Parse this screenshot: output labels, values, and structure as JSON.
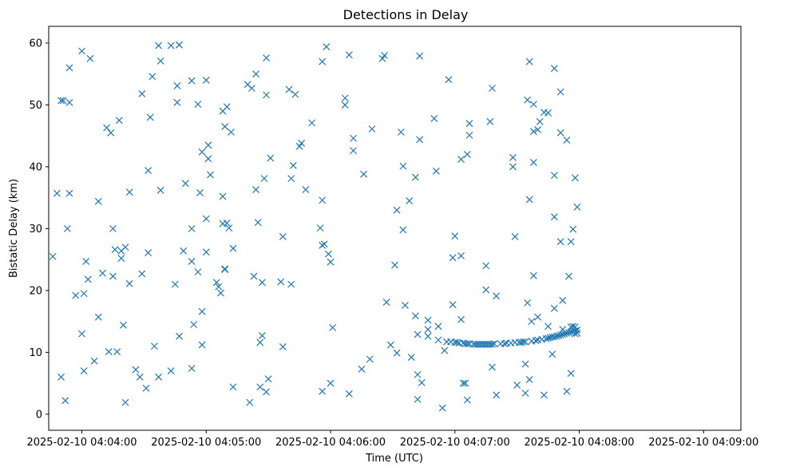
{
  "chart_data": {
    "type": "scatter",
    "title": "Detections in Delay",
    "xlabel": "Time (UTC)",
    "ylabel": "Bistatic Delay (km)",
    "x_unit": "seconds after 2025-02-10 04:04:00",
    "xlim": [
      -16,
      318
    ],
    "ylim": [
      -2.6,
      62.7
    ],
    "x_ticks": [
      {
        "value": 0,
        "label": "2025-02-10 04:04:00"
      },
      {
        "value": 60,
        "label": "2025-02-10 04:05:00"
      },
      {
        "value": 120,
        "label": "2025-02-10 04:06:00"
      },
      {
        "value": 180,
        "label": "2025-02-10 04:07:00"
      },
      {
        "value": 240,
        "label": "2025-02-10 04:08:00"
      },
      {
        "value": 300,
        "label": "2025-02-10 04:09:00"
      }
    ],
    "y_ticks": [
      {
        "value": 0,
        "label": "0"
      },
      {
        "value": 10,
        "label": "10"
      },
      {
        "value": 20,
        "label": "20"
      },
      {
        "value": 30,
        "label": "30"
      },
      {
        "value": 40,
        "label": "40"
      },
      {
        "value": 50,
        "label": "50"
      },
      {
        "value": 60,
        "label": "60"
      }
    ],
    "marker": "x",
    "color": "#1f77b4",
    "grid": false,
    "series": [
      {
        "name": "Detections",
        "points": [
          [
            -14,
            25.5
          ],
          [
            -12,
            35.7
          ],
          [
            -10,
            6.0
          ],
          [
            -10,
            50.7
          ],
          [
            -9,
            50.7
          ],
          [
            -8,
            2.2
          ],
          [
            -7,
            30.0
          ],
          [
            -6,
            56.0
          ],
          [
            -6,
            35.7
          ],
          [
            -6,
            50.4
          ],
          [
            -3,
            19.2
          ],
          [
            0,
            13.0
          ],
          [
            0,
            58.7
          ],
          [
            1,
            19.5
          ],
          [
            1,
            7.0
          ],
          [
            2,
            24.7
          ],
          [
            3,
            21.8
          ],
          [
            4,
            57.5
          ],
          [
            6,
            8.6
          ],
          [
            8,
            34.4
          ],
          [
            8,
            15.7
          ],
          [
            10,
            22.8
          ],
          [
            12,
            46.3
          ],
          [
            13,
            10.1
          ],
          [
            14,
            45.5
          ],
          [
            15,
            30.0
          ],
          [
            15,
            22.3
          ],
          [
            16,
            26.6
          ],
          [
            17,
            10.1
          ],
          [
            18,
            47.5
          ],
          [
            19,
            26.4
          ],
          [
            19,
            25.2
          ],
          [
            20,
            14.4
          ],
          [
            21,
            27.0
          ],
          [
            21,
            1.9
          ],
          [
            23,
            21.1
          ],
          [
            23,
            35.9
          ],
          [
            26,
            7.2
          ],
          [
            28,
            6.0
          ],
          [
            29,
            51.8
          ],
          [
            29,
            22.7
          ],
          [
            31,
            4.2
          ],
          [
            32,
            26.1
          ],
          [
            32,
            39.4
          ],
          [
            33,
            48.0
          ],
          [
            34,
            54.6
          ],
          [
            35,
            11.0
          ],
          [
            37,
            6.0
          ],
          [
            37,
            59.6
          ],
          [
            38,
            57.1
          ],
          [
            38,
            36.2
          ],
          [
            43,
            59.6
          ],
          [
            43,
            7.0
          ],
          [
            45,
            21.0
          ],
          [
            46,
            50.4
          ],
          [
            46,
            53.1
          ],
          [
            47,
            59.7
          ],
          [
            47,
            59.7
          ],
          [
            47,
            12.6
          ],
          [
            49,
            26.4
          ],
          [
            50,
            37.3
          ],
          [
            53,
            30.0
          ],
          [
            53,
            7.4
          ],
          [
            53,
            53.9
          ],
          [
            53,
            24.7
          ],
          [
            54,
            14.5
          ],
          [
            56,
            23.0
          ],
          [
            56,
            50.1
          ],
          [
            57,
            35.8
          ],
          [
            58,
            42.4
          ],
          [
            58,
            16.6
          ],
          [
            58,
            11.2
          ],
          [
            60,
            31.6
          ],
          [
            60,
            54.0
          ],
          [
            60,
            26.2
          ],
          [
            61,
            43.5
          ],
          [
            61,
            41.3
          ],
          [
            62,
            38.7
          ],
          [
            65,
            21.3
          ],
          [
            66,
            20.6
          ],
          [
            67,
            19.6
          ],
          [
            68,
            30.8
          ],
          [
            68,
            35.2
          ],
          [
            68,
            49.0
          ],
          [
            69,
            46.5
          ],
          [
            69,
            23.5
          ],
          [
            69,
            23.4
          ],
          [
            70,
            49.7
          ],
          [
            70,
            30.9
          ],
          [
            71,
            30.1
          ],
          [
            72,
            45.6
          ],
          [
            73,
            26.8
          ],
          [
            73,
            4.4
          ],
          [
            80,
            53.3
          ],
          [
            81,
            1.9
          ],
          [
            82,
            52.7
          ],
          [
            83,
            22.3
          ],
          [
            84,
            36.3
          ],
          [
            84,
            55.0
          ],
          [
            85,
            31.0
          ],
          [
            86,
            4.4
          ],
          [
            86,
            11.6
          ],
          [
            87,
            21.3
          ],
          [
            87,
            12.7
          ],
          [
            88,
            38.1
          ],
          [
            89,
            3.6
          ],
          [
            89,
            51.6
          ],
          [
            89,
            57.6
          ],
          [
            90,
            5.7
          ],
          [
            91,
            41.4
          ],
          [
            96,
            21.4
          ],
          [
            97,
            10.9
          ],
          [
            97,
            28.7
          ],
          [
            100,
            52.5
          ],
          [
            101,
            21.0
          ],
          [
            101,
            38.1
          ],
          [
            102,
            40.2
          ],
          [
            103,
            51.7
          ],
          [
            105,
            43.3
          ],
          [
            106,
            43.8
          ],
          [
            108,
            36.3
          ],
          [
            111,
            47.1
          ],
          [
            115,
            30.1
          ],
          [
            116,
            3.7
          ],
          [
            116,
            27.3
          ],
          [
            116,
            34.6
          ],
          [
            116,
            57.0
          ],
          [
            117,
            27.5
          ],
          [
            118,
            59.4
          ],
          [
            119,
            25.9
          ],
          [
            120,
            5.0
          ],
          [
            120,
            24.6
          ],
          [
            121,
            14.0
          ],
          [
            127,
            50.0
          ],
          [
            127,
            51.1
          ],
          [
            129,
            3.3
          ],
          [
            129,
            58.1
          ],
          [
            131,
            44.6
          ],
          [
            131,
            42.6
          ],
          [
            135,
            7.3
          ],
          [
            136,
            38.8
          ],
          [
            139,
            8.9
          ],
          [
            140,
            46.1
          ],
          [
            145,
            57.5
          ],
          [
            146,
            58.0
          ],
          [
            147,
            18.1
          ],
          [
            149,
            11.2
          ],
          [
            151,
            24.1
          ],
          [
            152,
            33.0
          ],
          [
            152,
            9.9
          ],
          [
            154,
            45.6
          ],
          [
            155,
            40.1
          ],
          [
            155,
            29.8
          ],
          [
            156,
            17.6
          ],
          [
            158,
            34.5
          ],
          [
            159,
            9.2
          ],
          [
            161,
            15.9
          ],
          [
            161,
            38.3
          ],
          [
            162,
            12.9
          ],
          [
            162,
            6.4
          ],
          [
            162,
            2.4
          ],
          [
            163,
            44.4
          ],
          [
            163,
            57.9
          ],
          [
            164,
            5.1
          ],
          [
            167,
            15.2
          ],
          [
            167,
            13.7
          ],
          [
            167,
            12.6
          ],
          [
            170,
            47.8
          ],
          [
            171,
            39.3
          ],
          [
            172,
            12.0
          ],
          [
            172,
            14.2
          ],
          [
            174,
            1.0
          ],
          [
            175,
            10.3
          ],
          [
            176,
            11.7
          ],
          [
            177,
            54.1
          ],
          [
            178,
            11.7
          ],
          [
            179,
            17.7
          ],
          [
            179,
            25.3
          ],
          [
            180,
            11.6
          ],
          [
            180,
            28.8
          ],
          [
            181,
            11.6
          ],
          [
            182,
            11.5
          ],
          [
            183,
            15.3
          ],
          [
            183,
            41.2
          ],
          [
            183,
            25.6
          ],
          [
            184,
            5.0
          ],
          [
            184,
            11.5
          ],
          [
            185,
            5.0
          ],
          [
            185,
            11.4
          ],
          [
            186,
            42.0
          ],
          [
            186,
            2.3
          ],
          [
            186,
            11.4
          ],
          [
            187,
            47.0
          ],
          [
            187,
            45.1
          ],
          [
            187,
            11.4
          ],
          [
            189,
            11.3
          ],
          [
            190,
            11.3
          ],
          [
            191,
            11.3
          ],
          [
            192,
            11.3
          ],
          [
            193,
            11.3
          ],
          [
            194,
            11.3
          ],
          [
            195,
            11.3
          ],
          [
            195,
            24.0
          ],
          [
            195,
            20.1
          ],
          [
            196,
            11.3
          ],
          [
            197,
            47.3
          ],
          [
            197,
            11.3
          ],
          [
            198,
            52.7
          ],
          [
            198,
            7.6
          ],
          [
            198,
            11.3
          ],
          [
            199,
            11.4
          ],
          [
            200,
            19.1
          ],
          [
            200,
            3.1
          ],
          [
            202,
            11.4
          ],
          [
            204,
            11.4
          ],
          [
            205,
            11.5
          ],
          [
            207,
            11.5
          ],
          [
            208,
            41.5
          ],
          [
            208,
            40.0
          ],
          [
            209,
            28.7
          ],
          [
            209,
            11.6
          ],
          [
            210,
            4.7
          ],
          [
            211,
            11.6
          ],
          [
            212,
            11.6
          ],
          [
            213,
            11.7
          ],
          [
            214,
            8.1
          ],
          [
            214,
            3.4
          ],
          [
            214,
            11.7
          ],
          [
            215,
            18.0
          ],
          [
            215,
            50.8
          ],
          [
            216,
            34.7
          ],
          [
            216,
            5.6
          ],
          [
            216,
            57.0
          ],
          [
            217,
            15.0
          ],
          [
            217,
            11.8
          ],
          [
            218,
            22.4
          ],
          [
            218,
            50.1
          ],
          [
            218,
            45.7
          ],
          [
            218,
            40.7
          ],
          [
            219,
            11.9
          ],
          [
            220,
            15.7
          ],
          [
            220,
            12.0
          ],
          [
            220,
            46.0
          ],
          [
            221,
            47.3
          ],
          [
            222,
            12.1
          ],
          [
            223,
            48.8
          ],
          [
            223,
            3.1
          ],
          [
            224,
            12.2
          ],
          [
            225,
            12.3
          ],
          [
            225,
            14.2
          ],
          [
            225,
            48.7
          ],
          [
            226,
            12.4
          ],
          [
            227,
            12.5
          ],
          [
            227,
            9.7
          ],
          [
            228,
            17.1
          ],
          [
            228,
            12.5
          ],
          [
            228,
            38.6
          ],
          [
            228,
            31.9
          ],
          [
            228,
            55.9
          ],
          [
            229,
            12.6
          ],
          [
            230,
            12.7
          ],
          [
            231,
            52.1
          ],
          [
            231,
            45.5
          ],
          [
            231,
            27.9
          ],
          [
            231,
            12.8
          ],
          [
            232,
            18.4
          ],
          [
            232,
            13.7
          ],
          [
            232,
            12.9
          ],
          [
            233,
            13.0
          ],
          [
            234,
            44.3
          ],
          [
            234,
            3.7
          ],
          [
            234,
            13.1
          ],
          [
            235,
            13.2
          ],
          [
            235,
            22.3
          ],
          [
            236,
            27.9
          ],
          [
            236,
            13.3
          ],
          [
            236,
            6.6
          ],
          [
            236,
            14.1
          ],
          [
            237,
            13.4
          ],
          [
            237,
            29.9
          ],
          [
            237,
            14.2
          ],
          [
            238,
            13.5
          ],
          [
            238,
            13.0
          ],
          [
            238,
            38.2
          ],
          [
            238,
            14.1
          ],
          [
            239,
            13.6
          ],
          [
            239,
            13.1
          ],
          [
            239,
            33.5
          ]
        ]
      }
    ]
  }
}
